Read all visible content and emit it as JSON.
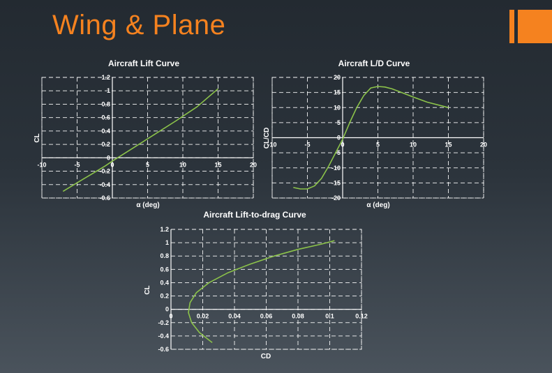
{
  "slide": {
    "title": "Wing & Plane"
  },
  "colors": {
    "accent": "#f5821f",
    "curve": "#8cc34a",
    "grid": "#ffffff"
  },
  "chart_data": [
    {
      "type": "line",
      "title": "Aircraft Lift Curve",
      "xlabel": "α (deg)",
      "ylabel": "CL",
      "xlim": [
        -10,
        20
      ],
      "ylim": [
        -0.6,
        1.2
      ],
      "xticks": [
        -10,
        -5,
        0,
        5,
        10,
        15,
        20
      ],
      "yticks": [
        -0.6,
        -0.4,
        -0.2,
        0,
        0.2,
        0.4,
        0.6,
        0.8,
        1,
        1.2
      ],
      "xtick_labels": [
        "-10",
        "-5",
        "0",
        "5",
        "10",
        "15",
        "20"
      ],
      "ytick_labels": [
        "-0.6",
        "-0.4",
        "-0.2",
        "0",
        "0.2",
        "0.4",
        "0.6",
        "0.8",
        "1",
        "1.2"
      ],
      "grid": true,
      "series": [
        {
          "x": [
            -7,
            -4,
            -1,
            0,
            3,
            6,
            9,
            12,
            15
          ],
          "y": [
            -0.5,
            -0.31,
            -0.12,
            -0.05,
            0.15,
            0.35,
            0.55,
            0.76,
            1.03
          ]
        }
      ]
    },
    {
      "type": "line",
      "title": "Aircraft L/D Curve",
      "xlabel": "α (deg)",
      "ylabel": "CL/CD",
      "xlim": [
        -10,
        20
      ],
      "ylim": [
        -20,
        20
      ],
      "xticks": [
        -10,
        -5,
        0,
        5,
        10,
        15,
        20
      ],
      "yticks": [
        -20,
        -15,
        -10,
        -5,
        0,
        5,
        10,
        15,
        20
      ],
      "xtick_labels": [
        "-10",
        "-5",
        "0",
        "5",
        "10",
        "15",
        "20"
      ],
      "ytick_labels": [
        "-20",
        "-15",
        "-10",
        "-5",
        "0",
        "5",
        "10",
        "15",
        "20"
      ],
      "grid": true,
      "series": [
        {
          "x": [
            -7,
            -6,
            -5,
            -4,
            -3,
            -2,
            -1,
            0,
            1,
            2,
            3,
            4,
            5,
            6,
            7,
            8,
            10,
            12,
            15
          ],
          "y": [
            -16.5,
            -17,
            -17,
            -16,
            -13.5,
            -9.5,
            -5,
            -0.5,
            5,
            10,
            14,
            16.5,
            17,
            16.8,
            16.2,
            15.3,
            13.5,
            11.8,
            10
          ]
        }
      ]
    },
    {
      "type": "line",
      "title": "Aircraft Lift-to-drag Curve",
      "xlabel": "CD",
      "ylabel": "CL",
      "xlim": [
        0,
        0.12
      ],
      "ylim": [
        -0.6,
        1.2
      ],
      "xticks": [
        0,
        0.02,
        0.04,
        0.06,
        0.08,
        0.1,
        0.12
      ],
      "yticks": [
        -0.6,
        -0.4,
        -0.2,
        0,
        0.2,
        0.4,
        0.6,
        0.8,
        1,
        1.2
      ],
      "xtick_labels": [
        "0",
        "0.02",
        "0.04",
        "0.06",
        "0.08",
        "0.1",
        "0.12"
      ],
      "ytick_labels": [
        "-0.6",
        "-0.4",
        "-0.2",
        "0",
        "0.2",
        "0.4",
        "0.6",
        "0.8",
        "1",
        "1.2"
      ],
      "grid": true,
      "series": [
        {
          "x": [
            0.026,
            0.018,
            0.013,
            0.011,
            0.012,
            0.016,
            0.024,
            0.036,
            0.05,
            0.065,
            0.08,
            0.095,
            0.103
          ],
          "y": [
            -0.5,
            -0.35,
            -0.2,
            -0.05,
            0.1,
            0.25,
            0.4,
            0.55,
            0.68,
            0.8,
            0.9,
            0.98,
            1.03
          ]
        }
      ]
    }
  ]
}
